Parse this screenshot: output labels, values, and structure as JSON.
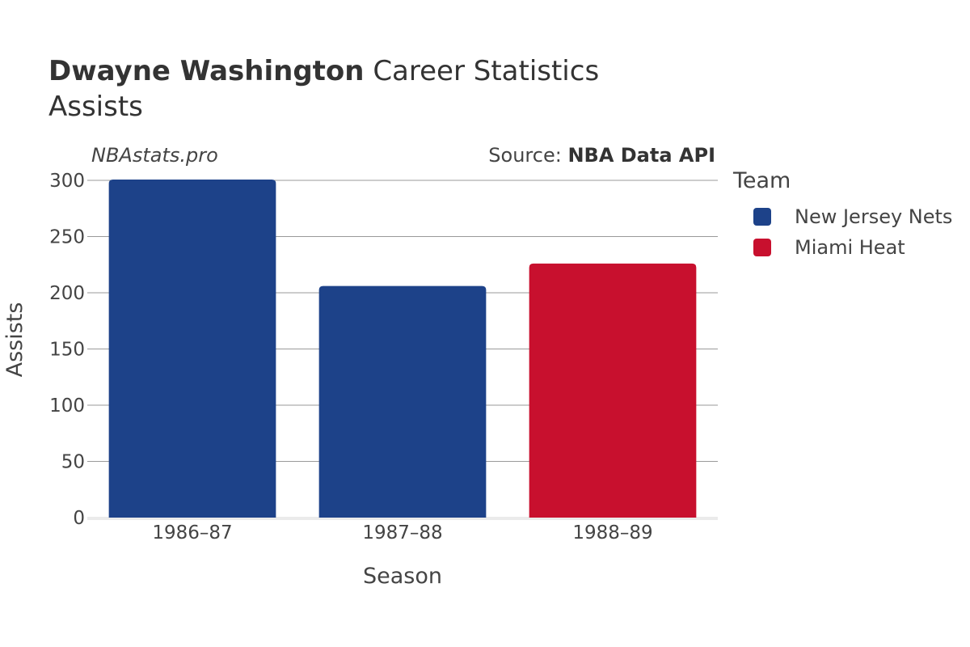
{
  "header": {
    "title_bold": "Dwayne Washington",
    "title_rest": "Career Statistics",
    "subtitle": "Assists",
    "watermark": "NBAstats.pro",
    "source_prefix": "Source: ",
    "source_name": "NBA Data API"
  },
  "legend": {
    "title": "Team",
    "items": [
      {
        "label": "New Jersey Nets",
        "color": "#1d4289"
      },
      {
        "label": "Miami Heat",
        "color": "#c8102e"
      }
    ]
  },
  "chart_data": {
    "type": "bar",
    "title": "Dwayne Washington Career Statistics",
    "subtitle": "Assists",
    "xlabel": "Season",
    "ylabel": "Assists",
    "categories": [
      "1986–87",
      "1987–88",
      "1988–89"
    ],
    "values": [
      301,
      206,
      226
    ],
    "teams": [
      "New Jersey Nets",
      "New Jersey Nets",
      "Miami Heat"
    ],
    "colors": [
      "#1d4289",
      "#1d4289",
      "#c8102e"
    ],
    "ylim": [
      0,
      300
    ],
    "yticks": [
      0,
      50,
      100,
      150,
      200,
      250,
      300
    ],
    "grid": true,
    "legend_position": "right"
  }
}
